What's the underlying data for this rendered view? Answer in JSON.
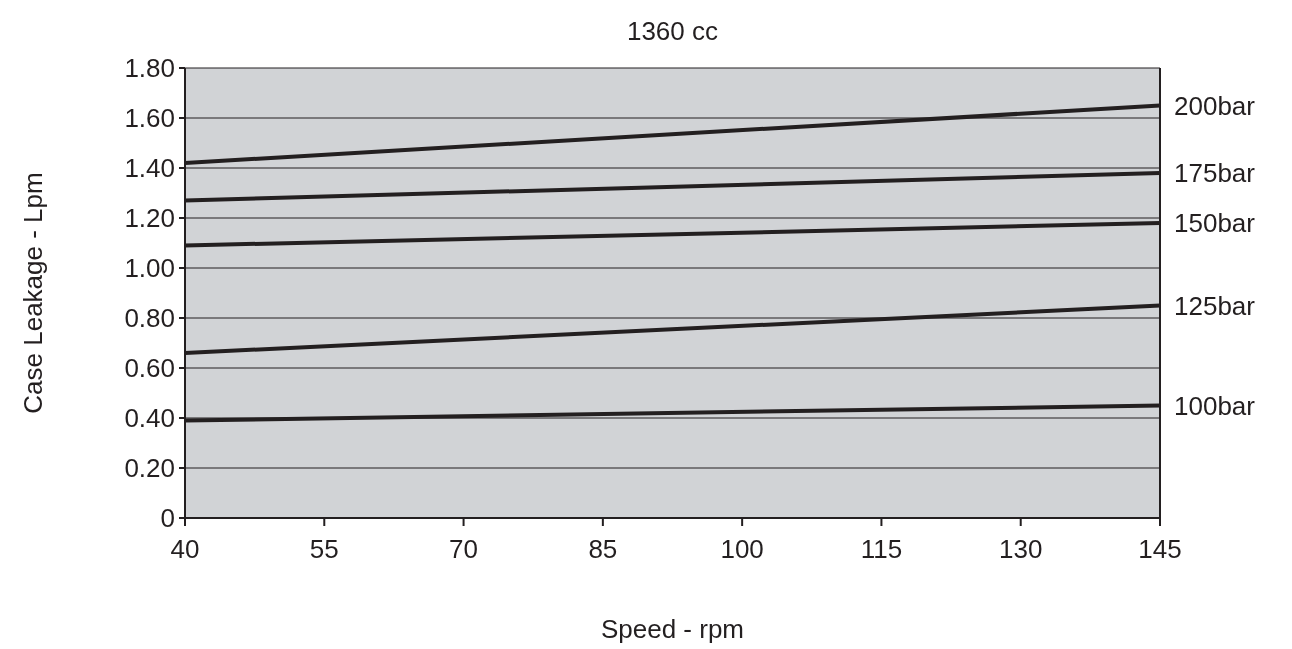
{
  "chart_data": {
    "type": "line",
    "title": "1360 cc",
    "xlabel": "Speed - rpm",
    "ylabel": "Case Leakage - Lpm",
    "x": [
      40,
      145
    ],
    "series": [
      {
        "name": "200bar",
        "color": "#231f20",
        "values": [
          1.42,
          1.65
        ]
      },
      {
        "name": "175bar",
        "color": "#231f20",
        "values": [
          1.27,
          1.38
        ]
      },
      {
        "name": "150bar",
        "color": "#231f20",
        "values": [
          1.09,
          1.18
        ]
      },
      {
        "name": "125bar",
        "color": "#231f20",
        "values": [
          0.66,
          0.85
        ]
      },
      {
        "name": "100bar",
        "color": "#231f20",
        "values": [
          0.39,
          0.45
        ]
      }
    ],
    "xlim": [
      40,
      145
    ],
    "xticks": [
      40,
      55,
      70,
      85,
      100,
      115,
      130,
      145
    ],
    "ylim": [
      0,
      1.8
    ],
    "yticks": [
      {
        "value": 0,
        "label": "0"
      },
      {
        "value": 0.2,
        "label": "0.20"
      },
      {
        "value": 0.4,
        "label": "0.40"
      },
      {
        "value": 0.6,
        "label": "0.60"
      },
      {
        "value": 0.8,
        "label": "0.80"
      },
      {
        "value": 1,
        "label": "1.00"
      },
      {
        "value": 1.2,
        "label": "1.20"
      },
      {
        "value": 1.4,
        "label": "1.40"
      },
      {
        "value": 1.6,
        "label": "1.60"
      },
      {
        "value": 1.8,
        "label": "1.80"
      }
    ],
    "grid": "y",
    "marker": "none",
    "line_style": "solid"
  }
}
